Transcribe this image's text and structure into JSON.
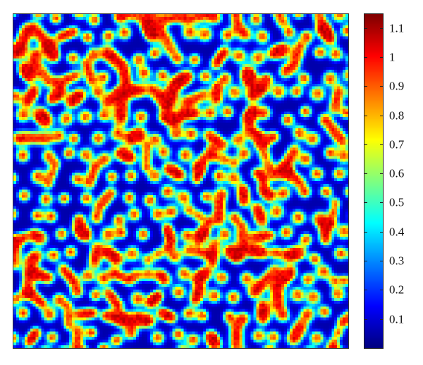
{
  "chart_data": {
    "type": "heatmap",
    "title": "",
    "xlabel": "",
    "ylabel": "",
    "pattern": "Turing-type spot/labyrinth pattern: dense field of red/orange spots and elongated worm-like stripes on a dark-blue background, with cyan/yellow halos",
    "value_range": [
      0.0,
      1.15
    ],
    "background_value": 0.05,
    "spot_peak_value": 1.1,
    "colormap": "jet",
    "colormap_stops": [
      "#00008f",
      "#0000ff",
      "#00ffff",
      "#ffff00",
      "#ff0000",
      "#800000"
    ],
    "colorbar": {
      "orientation": "vertical",
      "placement": "right",
      "ticks": [
        0.1,
        0.2,
        0.3,
        0.4,
        0.5,
        0.6,
        0.7,
        0.8,
        0.9,
        1,
        1.1
      ],
      "tick_labels": [
        "0.1",
        "0.2",
        "0.3",
        "0.4",
        "0.5",
        "0.6",
        "0.7",
        "0.8",
        "0.9",
        "1",
        "1.1"
      ]
    }
  }
}
